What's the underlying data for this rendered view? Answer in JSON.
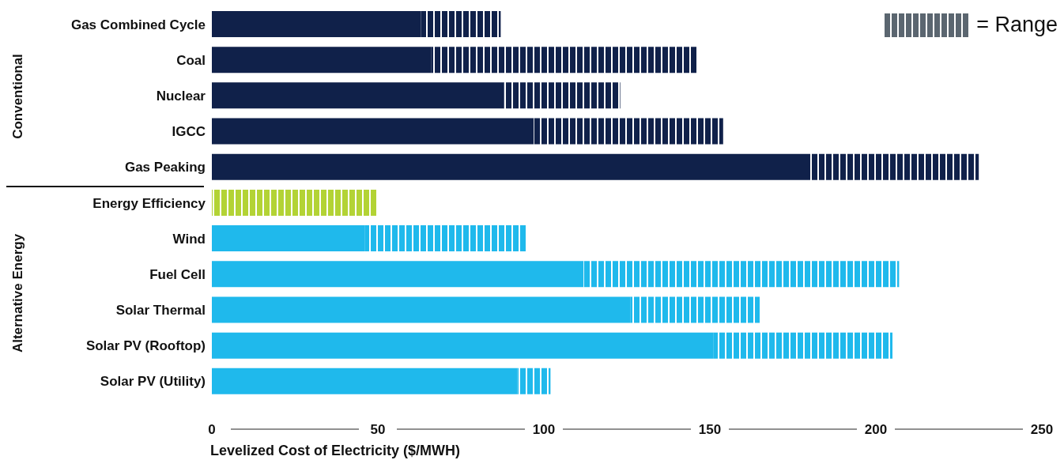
{
  "chart_data": {
    "type": "bar",
    "orientation": "horizontal",
    "stacked": true,
    "categories": [
      "Gas Combined Cycle",
      "Coal",
      "Nuclear",
      "IGCC",
      "Gas Peaking",
      "Energy Efficiency",
      "Wind",
      "Fuel Cell",
      "Solar Thermal",
      "Solar PV (Rooftop)",
      "Solar PV (Utility)"
    ],
    "series": [
      {
        "colors": [
          "#10214a",
          "#10214a",
          "#10214a",
          "#10214a",
          "#10214a",
          "#b3d335",
          "#1fb9ec",
          "#1fb9ec",
          "#1fb9ec",
          "#1fb9ec",
          "#1fb9ec"
        ],
        "values": [
          63,
          66,
          88,
          97,
          180,
          null,
          46,
          112,
          126,
          151,
          92
        ]
      },
      {
        "name": "= Range",
        "color": "#5b6670",
        "colors": [
          "#10214a",
          "#10214a",
          "#10214a",
          "#10214a",
          "#10214a",
          "#b3d335",
          "#1fb9ec",
          "#1fb9ec",
          "#1fb9ec",
          "#1fb9ec",
          "#1fb9ec"
        ],
        "values": [
          24,
          80,
          35,
          57,
          51,
          50,
          49,
          95,
          39,
          54,
          10
        ]
      }
    ],
    "xlim": [
      0,
      250
    ],
    "xticks": [
      0,
      50,
      100,
      150,
      200,
      250
    ],
    "xlabel": "Levelized Cost of Electricity ($/MWH)",
    "annotations": [
      "Conventional",
      "Alternative Energy"
    ],
    "legend": "top right"
  }
}
